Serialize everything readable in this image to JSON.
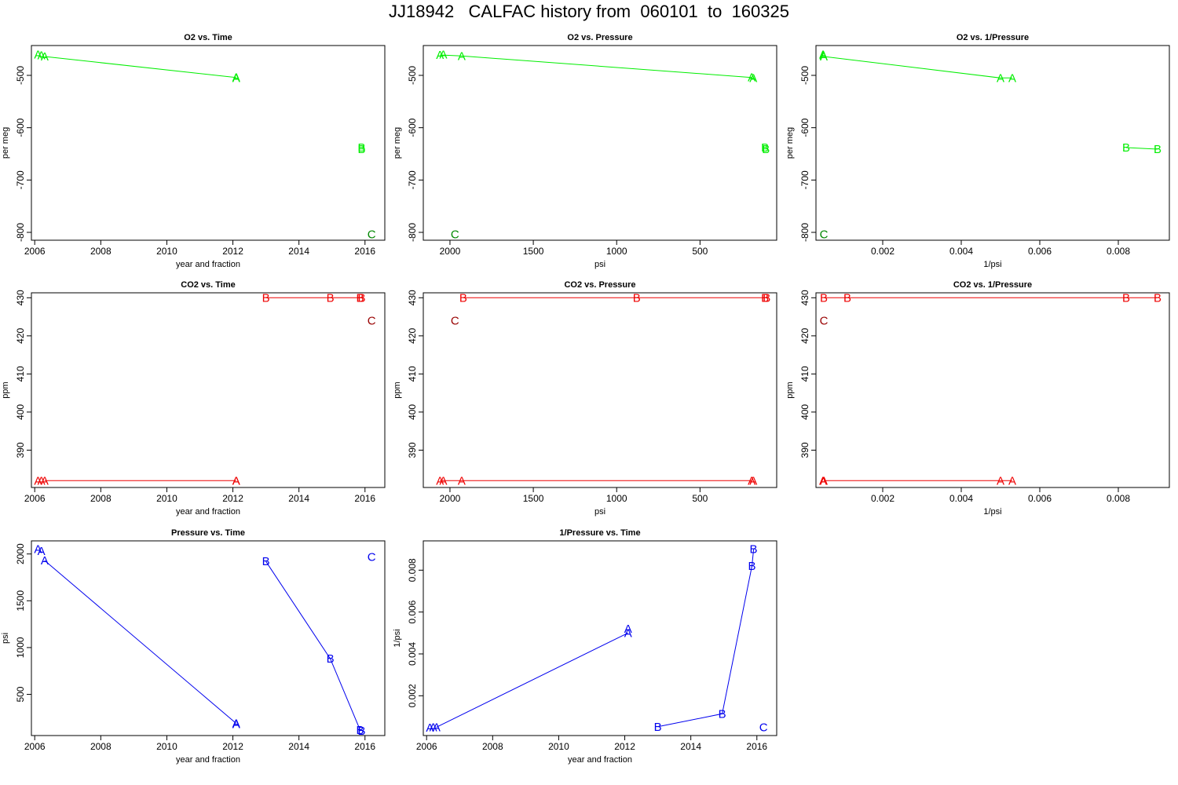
{
  "title": "JJ18942   CALFAC history from  060101  to  160325",
  "colors": {
    "o2_A": "#00ee00",
    "o2_B": "#00ee00",
    "o2_C": "#008800",
    "co2_A": "#ee0000",
    "co2_B": "#ee0000",
    "co2_C": "#990000",
    "p": "#0000ee",
    "axis": "#000000"
  },
  "chart_data": [
    {
      "type": "scatter",
      "title": "O2 vs. Time",
      "xlabel": "year and fraction",
      "ylabel": "per meg",
      "xlim": [
        2005.9,
        2016.6
      ],
      "ylim": [
        -815,
        -443
      ],
      "x_ticks": [
        2006,
        2008,
        2010,
        2012,
        2014,
        2016
      ],
      "y_ticks": [
        -800,
        -700,
        -600,
        -500
      ],
      "color_key": "o2",
      "series": [
        {
          "name": "A",
          "points": [
            [
              2006.1,
              -460
            ],
            [
              2006.2,
              -462
            ],
            [
              2006.3,
              -464
            ],
            [
              2012.1,
              -504
            ],
            [
              2012.1,
              -505
            ]
          ],
          "connect": [
            [
              2006.3,
              -464
            ],
            [
              2012.1,
              -504
            ]
          ]
        },
        {
          "name": "B",
          "points": [
            [
              2015.9,
              -638
            ],
            [
              2015.9,
              -641
            ]
          ]
        },
        {
          "name": "C",
          "points": [
            [
              2016.2,
              -804
            ]
          ]
        }
      ]
    },
    {
      "type": "scatter",
      "title": "O2 vs. Pressure",
      "xlabel": "psi",
      "ylabel": "per meg",
      "xlim": [
        2160,
        40
      ],
      "ylim": [
        -815,
        -443
      ],
      "x_ticks": [
        2000,
        1500,
        1000,
        500
      ],
      "y_ticks": [
        -800,
        -700,
        -600,
        -500
      ],
      "color_key": "o2",
      "series": [
        {
          "name": "A",
          "points": [
            [
              2060,
              -461
            ],
            [
              2040,
              -460
            ],
            [
              1930,
              -463
            ],
            [
              190,
              -504
            ],
            [
              180,
              -505
            ]
          ],
          "connect": [
            [
              2060,
              -461
            ],
            [
              1930,
              -463
            ],
            [
              190,
              -504
            ]
          ]
        },
        {
          "name": "B",
          "points": [
            [
              110,
              -638
            ],
            [
              105,
              -641
            ]
          ]
        },
        {
          "name": "C",
          "points": [
            [
              1970,
              -804
            ]
          ]
        }
      ]
    },
    {
      "type": "scatter",
      "title": "O2 vs. 1/Pressure",
      "xlabel": "1/psi",
      "ylabel": "per meg",
      "xlim": [
        0.0003,
        0.0093
      ],
      "ylim": [
        -815,
        -443
      ],
      "x_ticks": [
        0.002,
        0.004,
        0.006,
        0.008
      ],
      "y_ticks": [
        -800,
        -700,
        -600,
        -500
      ],
      "color_key": "o2",
      "series": [
        {
          "name": "A",
          "points": [
            [
              0.00048,
              -460
            ],
            [
              0.00049,
              -462
            ],
            [
              0.0005,
              -464
            ],
            [
              0.005,
              -505
            ],
            [
              0.0053,
              -505
            ]
          ],
          "connect": [
            [
              0.0005,
              -464
            ],
            [
              0.005,
              -505
            ],
            [
              0.0053,
              -505
            ]
          ]
        },
        {
          "name": "B",
          "points": [
            [
              0.0082,
              -638
            ],
            [
              0.009,
              -641
            ]
          ],
          "connect": [
            [
              0.0082,
              -638
            ],
            [
              0.009,
              -641
            ]
          ]
        },
        {
          "name": "C",
          "points": [
            [
              0.0005,
              -804
            ]
          ]
        }
      ]
    },
    {
      "type": "scatter",
      "title": "CO2 vs. Time",
      "xlabel": "year and fraction",
      "ylabel": "ppm",
      "xlim": [
        2005.9,
        2016.6
      ],
      "ylim": [
        380.2,
        431.3
      ],
      "x_ticks": [
        2006,
        2008,
        2010,
        2012,
        2014,
        2016
      ],
      "y_ticks": [
        390,
        400,
        410,
        420,
        430
      ],
      "color_key": "co2",
      "series": [
        {
          "name": "A",
          "points": [
            [
              2006.1,
              382
            ],
            [
              2006.2,
              382
            ],
            [
              2006.3,
              382
            ],
            [
              2012.1,
              382
            ],
            [
              2012.1,
              382
            ]
          ],
          "connect": [
            [
              2006.3,
              382
            ],
            [
              2012.1,
              382
            ]
          ]
        },
        {
          "name": "B",
          "points": [
            [
              2013.0,
              430
            ],
            [
              2014.95,
              430
            ],
            [
              2015.85,
              430
            ],
            [
              2015.9,
              430
            ]
          ],
          "connect": [
            [
              2013.0,
              430
            ],
            [
              2014.95,
              430
            ],
            [
              2015.9,
              430
            ]
          ]
        },
        {
          "name": "C",
          "points": [
            [
              2016.2,
              424
            ]
          ]
        }
      ]
    },
    {
      "type": "scatter",
      "title": "CO2 vs. Pressure",
      "xlabel": "psi",
      "ylabel": "ppm",
      "xlim": [
        2160,
        40
      ],
      "ylim": [
        380.2,
        431.3
      ],
      "x_ticks": [
        2000,
        1500,
        1000,
        500
      ],
      "y_ticks": [
        390,
        400,
        410,
        420,
        430
      ],
      "color_key": "co2",
      "series": [
        {
          "name": "A",
          "points": [
            [
              2060,
              382
            ],
            [
              2040,
              382
            ],
            [
              1930,
              382
            ],
            [
              190,
              382
            ],
            [
              180,
              382
            ]
          ],
          "connect": [
            [
              2060,
              382
            ],
            [
              1930,
              382
            ],
            [
              190,
              382
            ]
          ]
        },
        {
          "name": "B",
          "points": [
            [
              1920,
              430
            ],
            [
              880,
              430
            ],
            [
              110,
              430
            ],
            [
              100,
              430
            ]
          ],
          "connect": [
            [
              1920,
              430
            ],
            [
              880,
              430
            ],
            [
              110,
              430
            ]
          ]
        },
        {
          "name": "C",
          "points": [
            [
              1970,
              424
            ]
          ]
        }
      ]
    },
    {
      "type": "scatter",
      "title": "CO2 vs. 1/Pressure",
      "xlabel": "1/psi",
      "ylabel": "ppm",
      "xlim": [
        0.0003,
        0.0093
      ],
      "ylim": [
        380.2,
        431.3
      ],
      "x_ticks": [
        0.002,
        0.004,
        0.006,
        0.008
      ],
      "y_ticks": [
        390,
        400,
        410,
        420,
        430
      ],
      "color_key": "co2",
      "series": [
        {
          "name": "A",
          "points": [
            [
              0.00048,
              382
            ],
            [
              0.00049,
              382
            ],
            [
              0.0005,
              382
            ],
            [
              0.005,
              382
            ],
            [
              0.0053,
              382
            ]
          ],
          "connect": [
            [
              0.0005,
              382
            ],
            [
              0.005,
              382
            ],
            [
              0.0053,
              382
            ]
          ]
        },
        {
          "name": "B",
          "points": [
            [
              0.0005,
              430
            ],
            [
              0.0011,
              430
            ],
            [
              0.0082,
              430
            ],
            [
              0.009,
              430
            ]
          ],
          "connect": [
            [
              0.0005,
              430
            ],
            [
              0.0011,
              430
            ],
            [
              0.0082,
              430
            ],
            [
              0.009,
              430
            ]
          ]
        },
        {
          "name": "C",
          "points": [
            [
              0.0005,
              424
            ]
          ]
        }
      ]
    },
    {
      "type": "scatter",
      "title": "Pressure vs. Time",
      "xlabel": "year and fraction",
      "ylabel": "psi",
      "xlim": [
        2005.9,
        2016.6
      ],
      "ylim": [
        60,
        2140
      ],
      "x_ticks": [
        2006,
        2008,
        2010,
        2012,
        2014,
        2016
      ],
      "y_ticks": [
        500,
        1000,
        1500,
        2000
      ],
      "color_key": "p",
      "series": [
        {
          "name": "A",
          "points": [
            [
              2006.1,
              2050
            ],
            [
              2006.2,
              2030
            ],
            [
              2006.3,
              1930
            ],
            [
              2012.1,
              190
            ],
            [
              2012.1,
              180
            ]
          ],
          "connect": [
            [
              2006.3,
              1930
            ],
            [
              2012.1,
              190
            ]
          ]
        },
        {
          "name": "B",
          "points": [
            [
              2013.0,
              1920
            ],
            [
              2014.95,
              880
            ],
            [
              2015.85,
              120
            ],
            [
              2015.9,
              110
            ]
          ],
          "connect": [
            [
              2013.0,
              1920
            ],
            [
              2014.95,
              880
            ],
            [
              2015.85,
              120
            ]
          ]
        },
        {
          "name": "C",
          "points": [
            [
              2016.2,
              1970
            ]
          ]
        }
      ]
    },
    {
      "type": "scatter",
      "title": "1/Pressure vs. Time",
      "xlabel": "year and fraction",
      "ylabel": "1/psi",
      "xlim": [
        2005.9,
        2016.6
      ],
      "ylim": [
        0.0001,
        0.0094
      ],
      "x_ticks": [
        2006,
        2008,
        2010,
        2012,
        2014,
        2016
      ],
      "y_ticks": [
        0.002,
        0.004,
        0.006,
        0.008
      ],
      "color_key": "p",
      "series": [
        {
          "name": "A",
          "points": [
            [
              2006.1,
              0.00048
            ],
            [
              2006.2,
              0.00049
            ],
            [
              2006.3,
              0.0005
            ],
            [
              2012.1,
              0.0052
            ],
            [
              2012.1,
              0.005
            ]
          ],
          "connect": [
            [
              2006.3,
              0.0005
            ],
            [
              2012.1,
              0.005
            ]
          ]
        },
        {
          "name": "B",
          "points": [
            [
              2013.0,
              0.00052
            ],
            [
              2014.95,
              0.00114
            ],
            [
              2015.85,
              0.0082
            ],
            [
              2015.9,
              0.009
            ]
          ],
          "connect": [
            [
              2013.0,
              0.00052
            ],
            [
              2014.95,
              0.00114
            ],
            [
              2015.85,
              0.0082
            ],
            [
              2015.9,
              0.009
            ]
          ]
        },
        {
          "name": "C",
          "points": [
            [
              2016.2,
              0.0005
            ]
          ]
        }
      ]
    }
  ]
}
